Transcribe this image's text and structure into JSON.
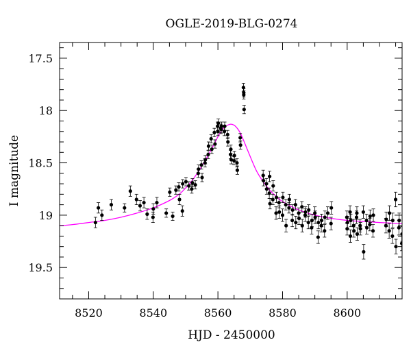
{
  "chart_data": {
    "type": "scatter",
    "title": "OGLE-2019-BLG-0274",
    "xlabel": "HJD - 2450000",
    "ylabel": "I magnitude",
    "xlim": [
      8511,
      8617
    ],
    "ylim": [
      19.8,
      17.35
    ],
    "y_inverted": true,
    "x_ticks": [
      8520,
      8540,
      8560,
      8580,
      8600
    ],
    "y_ticks": [
      17.5,
      18,
      18.5,
      19,
      19.5
    ],
    "x_tick_labels": [
      "8520",
      "8540",
      "8560",
      "8580",
      "8600"
    ],
    "y_tick_labels": [
      "17.5",
      "18",
      "18.5",
      "19",
      "19.5"
    ],
    "grid": false,
    "legend": "none",
    "colors": {
      "points": "#000000",
      "model": "#ff00ff"
    },
    "series": [
      {
        "type": "scatter_with_errorbars",
        "points": [
          [
            8522.1,
            19.07,
            0.05
          ],
          [
            8523.0,
            18.93,
            0.05
          ],
          [
            8524.1,
            19.0,
            0.05
          ],
          [
            8527.0,
            18.9,
            0.05
          ],
          [
            8531.1,
            18.93,
            0.04
          ],
          [
            8532.9,
            18.77,
            0.05
          ],
          [
            8534.8,
            18.85,
            0.05
          ],
          [
            8535.9,
            18.91,
            0.05
          ],
          [
            8537.1,
            18.88,
            0.05
          ],
          [
            8538.1,
            18.99,
            0.05
          ],
          [
            8539.9,
            19.02,
            0.05
          ],
          [
            8540.0,
            18.94,
            0.05
          ],
          [
            8541.1,
            18.88,
            0.05
          ],
          [
            8544.0,
            18.98,
            0.04
          ],
          [
            8545.1,
            18.78,
            0.04
          ],
          [
            8546.0,
            19.01,
            0.04
          ],
          [
            8547.0,
            18.76,
            0.04
          ],
          [
            8547.9,
            18.73,
            0.04
          ],
          [
            8548.1,
            18.85,
            0.05
          ],
          [
            8549.0,
            18.96,
            0.05
          ],
          [
            8549.1,
            18.7,
            0.04
          ],
          [
            8550.1,
            18.68,
            0.04
          ],
          [
            8551.0,
            18.72,
            0.04
          ],
          [
            8551.9,
            18.75,
            0.04
          ],
          [
            8552.1,
            18.69,
            0.04
          ],
          [
            8553.0,
            18.71,
            0.04
          ],
          [
            8553.9,
            18.6,
            0.04
          ],
          [
            8554.0,
            18.56,
            0.04
          ],
          [
            8554.9,
            18.52,
            0.04
          ],
          [
            8555.1,
            18.64,
            0.04
          ],
          [
            8556.0,
            18.5,
            0.04
          ],
          [
            8556.1,
            18.47,
            0.04
          ],
          [
            8557.0,
            18.42,
            0.04
          ],
          [
            8557.1,
            18.34,
            0.04
          ],
          [
            8557.9,
            18.27,
            0.04
          ],
          [
            8558.1,
            18.37,
            0.04
          ],
          [
            8558.9,
            18.21,
            0.04
          ],
          [
            8559.1,
            18.32,
            0.04
          ],
          [
            8559.9,
            18.15,
            0.04
          ],
          [
            8560.0,
            18.2,
            0.04
          ],
          [
            8560.1,
            18.12,
            0.04
          ],
          [
            8560.9,
            18.17,
            0.04
          ],
          [
            8561.0,
            18.18,
            0.04
          ],
          [
            8561.1,
            18.15,
            0.04
          ],
          [
            8562.0,
            18.2,
            0.04
          ],
          [
            8562.1,
            18.15,
            0.04
          ],
          [
            8563.0,
            18.23,
            0.04
          ],
          [
            8563.1,
            18.3,
            0.04
          ],
          [
            8563.9,
            18.42,
            0.04
          ],
          [
            8564.0,
            18.37,
            0.04
          ],
          [
            8564.1,
            18.47,
            0.04
          ],
          [
            8565.0,
            18.48,
            0.04
          ],
          [
            8565.1,
            18.43,
            0.04
          ],
          [
            8565.9,
            18.5,
            0.04
          ],
          [
            8566.0,
            18.57,
            0.04
          ],
          [
            8566.9,
            18.26,
            0.04
          ],
          [
            8567.0,
            18.33,
            0.04
          ],
          [
            8567.9,
            17.78,
            0.04
          ],
          [
            8568.0,
            17.83,
            0.04
          ],
          [
            8568.0,
            17.85,
            0.04
          ],
          [
            8568.1,
            17.99,
            0.04
          ],
          [
            8574.0,
            18.62,
            0.05
          ],
          [
            8574.1,
            18.67,
            0.05
          ],
          [
            8575.0,
            18.7,
            0.05
          ],
          [
            8575.1,
            18.75,
            0.05
          ],
          [
            8575.9,
            18.79,
            0.05
          ],
          [
            8576.0,
            18.63,
            0.05
          ],
          [
            8576.1,
            18.89,
            0.05
          ],
          [
            8577.0,
            18.85,
            0.05
          ],
          [
            8577.1,
            18.72,
            0.05
          ],
          [
            8578.0,
            18.98,
            0.06
          ],
          [
            8578.1,
            18.83,
            0.05
          ],
          [
            8578.9,
            18.88,
            0.05
          ],
          [
            8579.0,
            18.97,
            0.06
          ],
          [
            8580.0,
            19.0,
            0.06
          ],
          [
            8580.1,
            18.83,
            0.05
          ],
          [
            8581.0,
            18.9,
            0.05
          ],
          [
            8581.1,
            19.1,
            0.06
          ],
          [
            8582.0,
            18.93,
            0.05
          ],
          [
            8582.1,
            18.85,
            0.05
          ],
          [
            8583.0,
            19.05,
            0.06
          ],
          [
            8583.1,
            18.95,
            0.05
          ],
          [
            8584.0,
            18.9,
            0.05
          ],
          [
            8584.1,
            19.07,
            0.06
          ],
          [
            8585.0,
            18.98,
            0.05
          ],
          [
            8585.1,
            19.03,
            0.06
          ],
          [
            8586.0,
            18.92,
            0.05
          ],
          [
            8586.1,
            19.1,
            0.06
          ],
          [
            8587.0,
            19.0,
            0.06
          ],
          [
            8587.1,
            18.97,
            0.05
          ],
          [
            8588.0,
            19.07,
            0.06
          ],
          [
            8588.1,
            18.95,
            0.05
          ],
          [
            8589.0,
            19.12,
            0.06
          ],
          [
            8589.1,
            19.05,
            0.06
          ],
          [
            8590.0,
            18.98,
            0.06
          ],
          [
            8590.1,
            19.02,
            0.06
          ],
          [
            8591.0,
            19.21,
            0.06
          ],
          [
            8591.1,
            19.07,
            0.06
          ],
          [
            8592.0,
            19.1,
            0.06
          ],
          [
            8592.1,
            19.05,
            0.06
          ],
          [
            8593.0,
            19.15,
            0.06
          ],
          [
            8593.1,
            19.02,
            0.06
          ],
          [
            8594.0,
            18.98,
            0.06
          ],
          [
            8595.0,
            19.08,
            0.06
          ],
          [
            8595.1,
            18.93,
            0.06
          ],
          [
            8599.9,
            19.02,
            0.06
          ],
          [
            8600.0,
            19.13,
            0.06
          ],
          [
            8600.1,
            19.07,
            0.06
          ],
          [
            8600.9,
            18.97,
            0.06
          ],
          [
            8601.0,
            19.2,
            0.06
          ],
          [
            8601.1,
            19.05,
            0.06
          ],
          [
            8602.0,
            19.1,
            0.06
          ],
          [
            8602.1,
            19.15,
            0.06
          ],
          [
            8602.9,
            19.02,
            0.06
          ],
          [
            8603.0,
            18.98,
            0.06
          ],
          [
            8603.1,
            19.18,
            0.06
          ],
          [
            8604.0,
            19.1,
            0.06
          ],
          [
            8604.1,
            19.13,
            0.06
          ],
          [
            8605.0,
            18.97,
            0.06
          ],
          [
            8605.1,
            19.35,
            0.07
          ],
          [
            8606.0,
            19.05,
            0.06
          ],
          [
            8606.1,
            19.12,
            0.06
          ],
          [
            8607.0,
            19.09,
            0.06
          ],
          [
            8607.1,
            19.01,
            0.06
          ],
          [
            8608.0,
            19.15,
            0.06
          ],
          [
            8608.1,
            19.0,
            0.06
          ],
          [
            8612.0,
            19.1,
            0.07
          ],
          [
            8612.1,
            19.04,
            0.07
          ],
          [
            8613.0,
            19.15,
            0.07
          ],
          [
            8613.1,
            18.98,
            0.07
          ],
          [
            8614.0,
            19.2,
            0.07
          ],
          [
            8614.1,
            19.05,
            0.07
          ],
          [
            8615.0,
            18.85,
            0.07
          ],
          [
            8615.1,
            19.3,
            0.07
          ],
          [
            8616.0,
            19.12,
            0.07
          ],
          [
            8616.1,
            19.05,
            0.07
          ],
          [
            8616.9,
            19.27,
            0.07
          ],
          [
            8617.0,
            19.18,
            0.07
          ]
        ]
      },
      {
        "type": "model_curve",
        "x": [
          8511,
          8515,
          8520,
          8525,
          8530,
          8535,
          8540,
          8545,
          8548,
          8550,
          8552,
          8554,
          8556,
          8558,
          8560,
          8561,
          8562,
          8563,
          8564,
          8565,
          8566,
          8567,
          8568,
          8570,
          8572,
          8574,
          8576,
          8578,
          8580,
          8585,
          8590,
          8595,
          8600,
          8605,
          8610,
          8617
        ],
        "y": [
          19.1,
          19.09,
          19.07,
          19.05,
          19.02,
          18.98,
          18.93,
          18.86,
          18.8,
          18.74,
          18.67,
          18.58,
          18.48,
          18.37,
          18.25,
          18.2,
          18.16,
          18.14,
          18.13,
          18.14,
          18.17,
          18.22,
          18.29,
          18.44,
          18.58,
          18.68,
          18.76,
          18.82,
          18.87,
          18.95,
          19.0,
          19.03,
          19.05,
          19.06,
          19.07,
          19.08
        ]
      }
    ]
  }
}
